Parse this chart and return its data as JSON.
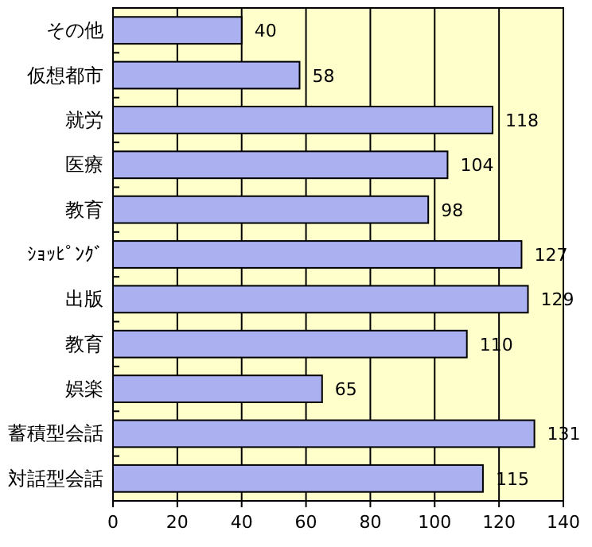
{
  "chart_data": {
    "type": "bar",
    "orientation": "horizontal",
    "categories": [
      "その他",
      "仮想都市",
      "就労",
      "医療",
      "教育",
      "ｼｮｯﾋﾟﾝｸﾞ",
      "出版",
      "教育",
      "娯楽",
      "蓄積型会話",
      "対話型会話"
    ],
    "values": [
      40,
      58,
      118,
      104,
      98,
      127,
      129,
      110,
      65,
      131,
      115
    ],
    "color": "#aab0f0",
    "data_labels": true,
    "grid": "x",
    "xlim": [
      0,
      140
    ],
    "xticks": [
      0,
      20,
      40,
      60,
      80,
      100,
      120,
      140
    ]
  }
}
